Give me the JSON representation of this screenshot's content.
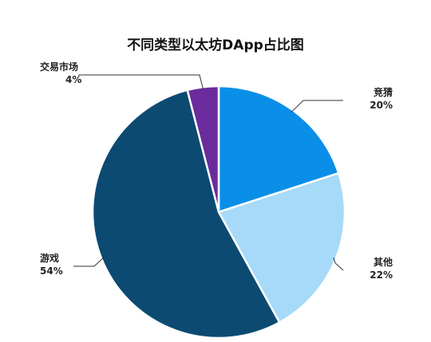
{
  "chart_data": {
    "type": "pie",
    "title": "不同类型以太坊DApp占比图",
    "slices": [
      {
        "label": "竞猜",
        "value": 20,
        "value_label": "20%",
        "color": "#0a8fe8"
      },
      {
        "label": "其他",
        "value": 22,
        "value_label": "22%",
        "color": "#a6daf8"
      },
      {
        "label": "游戏",
        "value": 54,
        "value_label": "54%",
        "color": "#0c4a72"
      },
      {
        "label": "交易市场",
        "value": 4,
        "value_label": "4%",
        "color": "#6a2c9c"
      }
    ],
    "start_angle_deg": 0,
    "direction": "clockwise",
    "legend": "none",
    "labels": "outside-with-leader-lines",
    "slice_border_color": "#ffffff"
  }
}
